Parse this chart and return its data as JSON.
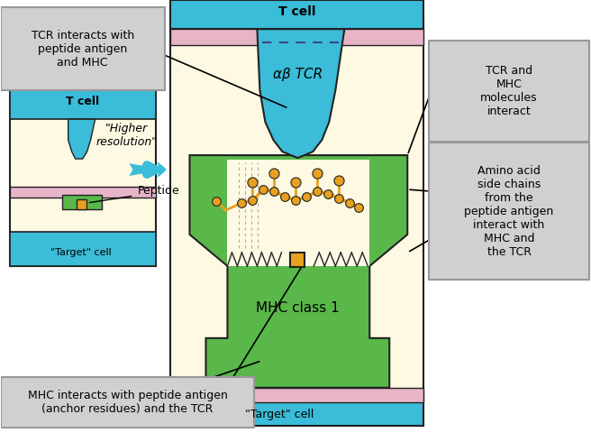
{
  "bg_color": "#fdf9e3",
  "cell_membrane_color": "#e8b4c8",
  "tcell_body_color": "#3bbcd8",
  "mhc_color": "#5ab84b",
  "peptide_groove_color": "#fdf9e3",
  "peptide_chain_color": "#e8a020",
  "tcr_label": "αβ TCR",
  "mhc_label": "MHC class 1",
  "tcell_label_top": "T cell",
  "tcell_label_small": "T cell",
  "target_cell_label_main": "\"Target\" cell",
  "target_cell_label_small": "\"Target\" cell",
  "peptide_label": "Peptide",
  "higher_res_label": "\"Higher\nresolution\"",
  "box1_text": "TCR interacts with\npeptide antigen\nand MHC",
  "box2_text": "TCR and\nMHC\nmolecules\ninteract",
  "box3_text": "Amino acid\nside chains\nfrom the\npeptide antigen\ninteract with\nMHC and\nthe TCR",
  "box4_text": "MHC interacts with peptide antigen\n(anchor residues) and the TCR",
  "box_bg": "#d0d0d0",
  "box_edge": "#999999",
  "outline_color": "#222222",
  "dashed_line_color": "#444488",
  "arrow_color": "#3bbcd8",
  "white": "#ffffff"
}
